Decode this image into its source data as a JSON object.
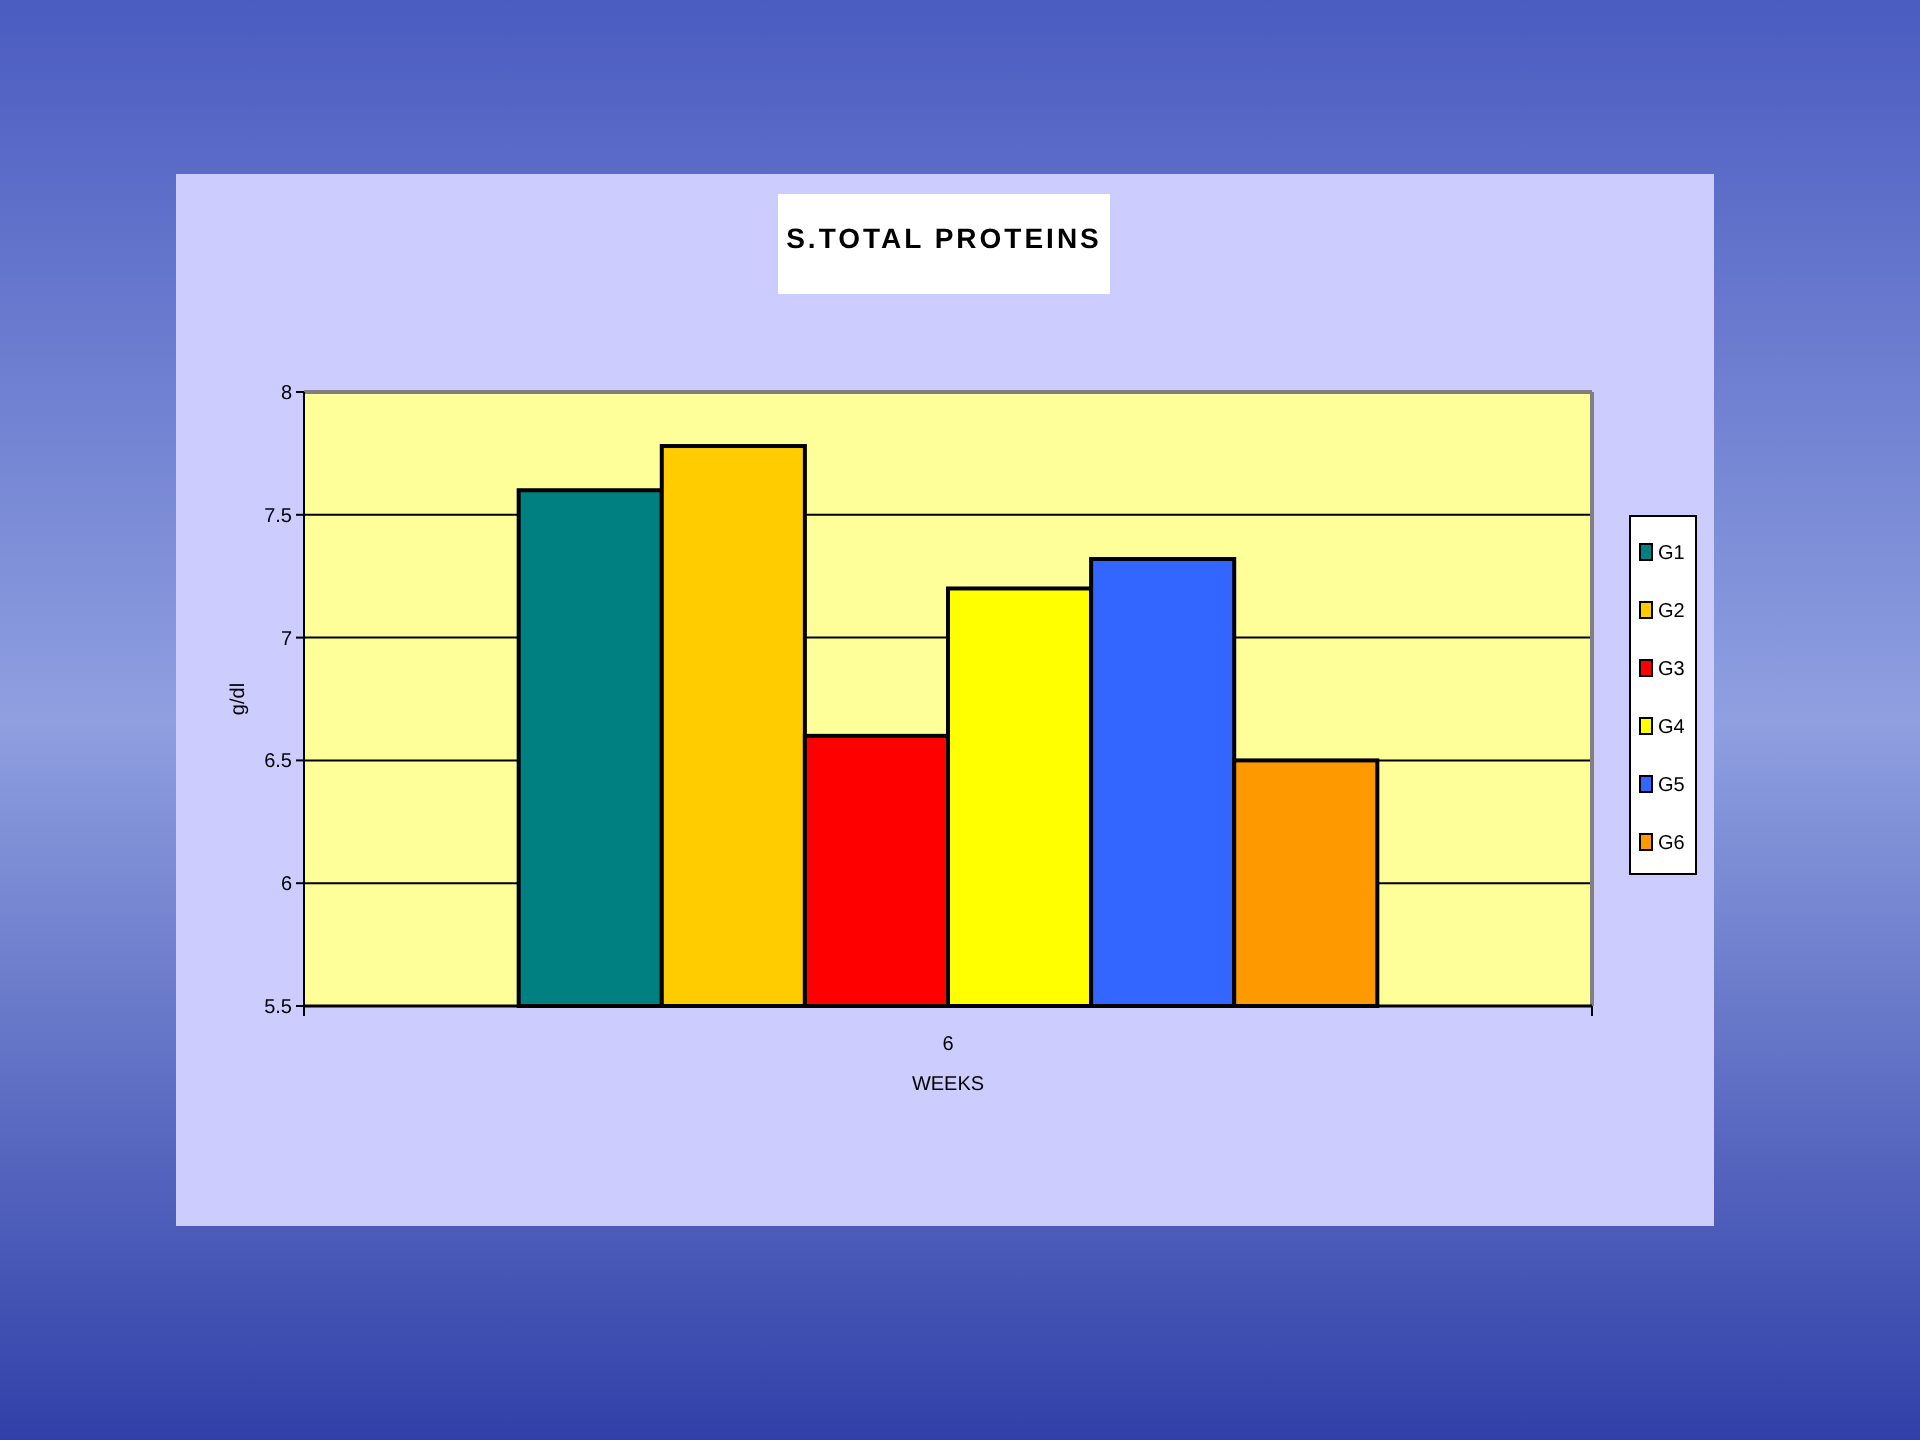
{
  "chart_data": {
    "type": "bar",
    "title": "S.TOTAL PROTEINS",
    "xlabel": "WEEKS",
    "ylabel": "g/dl",
    "categories": [
      "6"
    ],
    "series": [
      {
        "name": "G1",
        "color": "#008080",
        "values": [
          7.6
        ]
      },
      {
        "name": "G2",
        "color": "#ffcc00",
        "values": [
          7.78
        ]
      },
      {
        "name": "G3",
        "color": "#ff0000",
        "values": [
          6.6
        ]
      },
      {
        "name": "G4",
        "color": "#ffff00",
        "values": [
          7.2
        ]
      },
      {
        "name": "G5",
        "color": "#3366ff",
        "values": [
          7.32
        ]
      },
      {
        "name": "G6",
        "color": "#ff9900",
        "values": [
          6.5
        ]
      }
    ],
    "ylim": [
      5.5,
      8
    ],
    "yticks": [
      5.5,
      6,
      6.5,
      7,
      7.5,
      8
    ],
    "grid": "y",
    "legend": "right"
  }
}
